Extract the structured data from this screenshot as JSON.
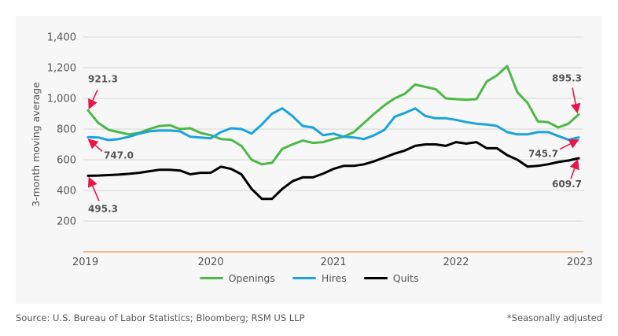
{
  "chart_data": {
    "type": "line",
    "title": "",
    "xlabel": "",
    "ylabel": "3-month moving average",
    "ylim": [
      0,
      1400
    ],
    "yticks": [
      200,
      400,
      600,
      800,
      1000,
      1200,
      1400
    ],
    "ytick_labels": [
      "200",
      "400",
      "600",
      "800",
      "1,000",
      "1,200",
      "1,400"
    ],
    "xticks": [
      "2019",
      "2020",
      "2021",
      "2022",
      "2023"
    ],
    "x_start": "2019-01",
    "x_end": "2023-01",
    "grid": true,
    "legend_position": "bottom-center",
    "series": [
      {
        "name": "Openings",
        "color": "#4db848",
        "values": [
          921.3,
          840,
          795,
          780,
          765,
          775,
          800,
          820,
          825,
          800,
          805,
          775,
          760,
          735,
          730,
          690,
          600,
          570,
          580,
          670,
          700,
          725,
          710,
          715,
          735,
          750,
          780,
          840,
          900,
          955,
          1000,
          1030,
          1090,
          1075,
          1060,
          1000,
          995,
          990,
          995,
          1110,
          1150,
          1210,
          1040,
          970,
          850,
          845,
          810,
          835,
          895.3
        ]
      },
      {
        "name": "Hires",
        "color": "#1aa3dc",
        "values": [
          747.0,
          745,
          728,
          735,
          750,
          770,
          785,
          790,
          790,
          785,
          750,
          745,
          740,
          780,
          805,
          800,
          770,
          830,
          900,
          935,
          885,
          820,
          810,
          760,
          770,
          750,
          745,
          735,
          760,
          795,
          880,
          905,
          935,
          885,
          870,
          870,
          860,
          845,
          835,
          830,
          820,
          780,
          765,
          765,
          780,
          780,
          755,
          730,
          745.7
        ]
      },
      {
        "name": "Quits",
        "color": "#000000",
        "values": [
          495.3,
          497,
          500,
          503,
          508,
          515,
          525,
          535,
          535,
          530,
          505,
          515,
          515,
          555,
          540,
          505,
          410,
          345,
          345,
          410,
          460,
          485,
          485,
          510,
          540,
          560,
          560,
          570,
          590,
          615,
          640,
          660,
          690,
          700,
          700,
          690,
          715,
          705,
          715,
          675,
          675,
          630,
          600,
          555,
          560,
          570,
          585,
          595,
          609.7
        ]
      }
    ],
    "annotations": [
      {
        "series": "Openings",
        "point": "first",
        "text": "921.3"
      },
      {
        "series": "Hires",
        "point": "first",
        "text": "747.0"
      },
      {
        "series": "Quits",
        "point": "first",
        "text": "495.3"
      },
      {
        "series": "Openings",
        "point": "last",
        "text": "895.3"
      },
      {
        "series": "Hires",
        "point": "last",
        "text": "745.7"
      },
      {
        "series": "Quits",
        "point": "last",
        "text": "609.7"
      }
    ],
    "annotation_color": "#e8174a",
    "baseline_color": "#f0a060",
    "gridline_color": "#dcdcdc"
  },
  "legend": {
    "items": [
      {
        "label": "Openings",
        "color": "#4db848"
      },
      {
        "label": "Hires",
        "color": "#1aa3dc"
      },
      {
        "label": "Quits",
        "color": "#000000"
      }
    ]
  },
  "footer": {
    "source": "Source: U.S. Bureau of Labor Statistics; Bloomberg; RSM US LLP",
    "note": "*Seasonally adjusted"
  }
}
